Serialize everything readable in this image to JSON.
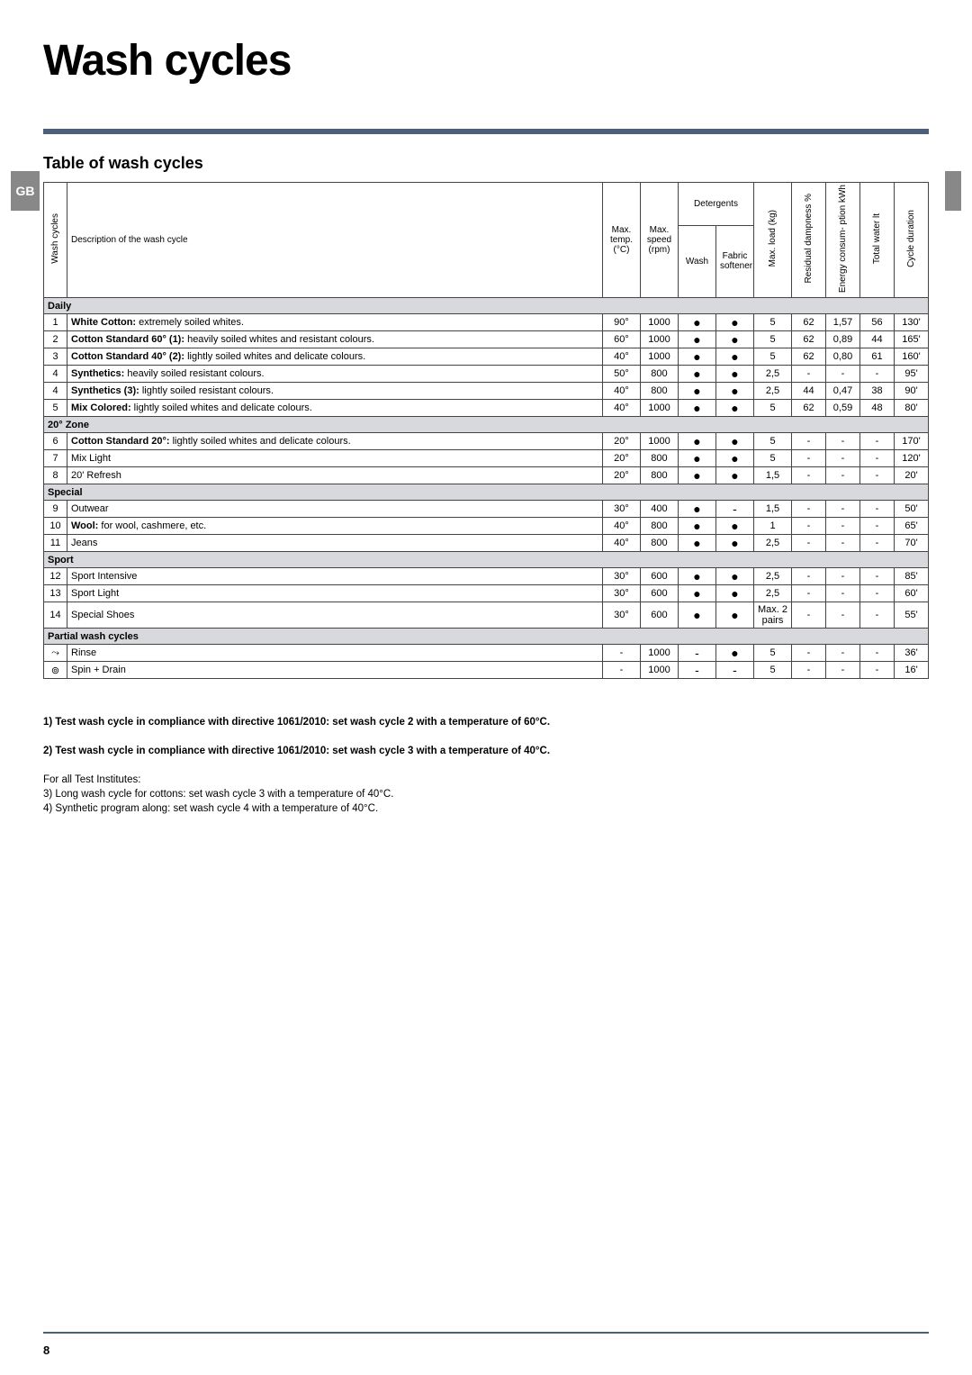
{
  "header": {
    "title": "Wash cycles",
    "side_tab": "GB",
    "section_title": "Table of wash cycles"
  },
  "columns": {
    "wc": "Wash cycles",
    "desc": "Description of the wash cycle",
    "temp_top": "Max.",
    "temp_bot": "temp. (°C)",
    "speed_top": "Max.",
    "speed_bot": "speed (rpm)",
    "det_group": "Detergents",
    "det_wash": "Wash",
    "det_soft": "Fabric softener",
    "load": "Max. load (kg)",
    "damp": "Residual dampness %",
    "energy": "Energy consum- ption kWh",
    "water": "Total water lt",
    "duration": "Cycle duration"
  },
  "sections": [
    {
      "type": "section",
      "label": "Daily"
    },
    {
      "type": "row",
      "num": "1",
      "desc_b": "White Cotton:",
      "desc_r": " extremely soiled whites.",
      "temp": "90°",
      "speed": "1000",
      "wash": "●",
      "soft": "●",
      "load": "5",
      "damp": "62",
      "energy": "1,57",
      "water": "56",
      "dur": "130'"
    },
    {
      "type": "row",
      "num": "2",
      "desc_b": "Cotton Standard 60° (1):",
      "desc_r": " heavily soiled whites and resistant colours.",
      "temp": "60°",
      "speed": "1000",
      "wash": "●",
      "soft": "●",
      "load": "5",
      "damp": "62",
      "energy": "0,89",
      "water": "44",
      "dur": "165'"
    },
    {
      "type": "row",
      "num": "3",
      "desc_b": "Cotton Standard 40° (2):",
      "desc_r": " lightly soiled whites and delicate colours.",
      "temp": "40°",
      "speed": "1000",
      "wash": "●",
      "soft": "●",
      "load": "5",
      "damp": "62",
      "energy": "0,80",
      "water": "61",
      "dur": "160'"
    },
    {
      "type": "row",
      "num": "4",
      "desc_b": "Synthetics:",
      "desc_r": " heavily soiled resistant colours.",
      "temp": "50°",
      "speed": "800",
      "wash": "●",
      "soft": "●",
      "load": "2,5",
      "damp": "-",
      "energy": "-",
      "water": "-",
      "dur": "95'"
    },
    {
      "type": "row",
      "num": "4",
      "desc_b": "Synthetics (3):",
      "desc_r": " lightly soiled resistant colours.",
      "temp": "40°",
      "speed": "800",
      "wash": "●",
      "soft": "●",
      "load": "2,5",
      "damp": "44",
      "energy": "0,47",
      "water": "38",
      "dur": "90'"
    },
    {
      "type": "row",
      "num": "5",
      "desc_b": "Mix Colored:",
      "desc_r": " lightly soiled whites and delicate colours.",
      "temp": "40°",
      "speed": "1000",
      "wash": "●",
      "soft": "●",
      "load": "5",
      "damp": "62",
      "energy": "0,59",
      "water": "48",
      "dur": "80'"
    },
    {
      "type": "section",
      "label": "20° Zone"
    },
    {
      "type": "row",
      "num": "6",
      "desc_b": "Cotton Standard 20°:",
      "desc_r": " lightly soiled whites and delicate colours.",
      "temp": "20°",
      "speed": "1000",
      "wash": "●",
      "soft": "●",
      "load": "5",
      "damp": "-",
      "energy": "-",
      "water": "-",
      "dur": "170'"
    },
    {
      "type": "row",
      "num": "7",
      "desc_b": "",
      "desc_r": "Mix Light",
      "temp": "20°",
      "speed": "800",
      "wash": "●",
      "soft": "●",
      "load": "5",
      "damp": "-",
      "energy": "-",
      "water": "-",
      "dur": "120'"
    },
    {
      "type": "row",
      "num": "8",
      "desc_b": "",
      "desc_r": "20' Refresh",
      "temp": "20°",
      "speed": "800",
      "wash": "●",
      "soft": "●",
      "load": "1,5",
      "damp": "-",
      "energy": "-",
      "water": "-",
      "dur": "20'"
    },
    {
      "type": "section",
      "label": "Special"
    },
    {
      "type": "row",
      "num": "9",
      "desc_b": "",
      "desc_r": "Outwear",
      "temp": "30°",
      "speed": "400",
      "wash": "●",
      "soft": "-",
      "load": "1,5",
      "damp": "-",
      "energy": "-",
      "water": "-",
      "dur": "50'"
    },
    {
      "type": "row",
      "num": "10",
      "desc_b": "Wool:",
      "desc_r": " for wool, cashmere, etc.",
      "temp": "40°",
      "speed": "800",
      "wash": "●",
      "soft": "●",
      "load": "1",
      "damp": "-",
      "energy": "-",
      "water": "-",
      "dur": "65'"
    },
    {
      "type": "row",
      "num": "11",
      "desc_b": "",
      "desc_r": "Jeans",
      "temp": "40°",
      "speed": "800",
      "wash": "●",
      "soft": "●",
      "load": "2,5",
      "damp": "-",
      "energy": "-",
      "water": "-",
      "dur": "70'"
    },
    {
      "type": "section",
      "label": "Sport"
    },
    {
      "type": "row",
      "num": "12",
      "desc_b": "",
      "desc_r": "Sport Intensive",
      "temp": "30°",
      "speed": "600",
      "wash": "●",
      "soft": "●",
      "load": "2,5",
      "damp": "-",
      "energy": "-",
      "water": "-",
      "dur": "85'"
    },
    {
      "type": "row",
      "num": "13",
      "desc_b": "",
      "desc_r": "Sport Light",
      "temp": "30°",
      "speed": "600",
      "wash": "●",
      "soft": "●",
      "load": "2,5",
      "damp": "-",
      "energy": "-",
      "water": "-",
      "dur": "60'"
    },
    {
      "type": "row",
      "num": "14",
      "desc_b": "",
      "desc_r": "Special Shoes",
      "temp": "30°",
      "speed": "600",
      "wash": "●",
      "soft": "●",
      "load": "Max. 2 pairs",
      "damp": "-",
      "energy": "-",
      "water": "-",
      "dur": "55'"
    },
    {
      "type": "section",
      "label": "Partial wash cycles"
    },
    {
      "type": "row",
      "num": "⤳",
      "desc_b": "",
      "desc_r": "Rinse",
      "temp": "-",
      "speed": "1000",
      "wash": "-",
      "soft": "●",
      "load": "5",
      "damp": "-",
      "energy": "-",
      "water": "-",
      "dur": "36'"
    },
    {
      "type": "row",
      "num": "⊚",
      "desc_b": "",
      "desc_r": "Spin + Drain",
      "temp": "-",
      "speed": "1000",
      "wash": "-",
      "soft": "-",
      "load": "5",
      "damp": "-",
      "energy": "-",
      "water": "-",
      "dur": "16'"
    }
  ],
  "notes": {
    "l1": "1) Test wash cycle in compliance with directive 1061/2010: set wash cycle 2 with a temperature of 60°C.",
    "l2": "2) Test wash cycle in compliance with directive 1061/2010: set wash cycle 3 with a temperature of 40°C.",
    "l3": "For all Test Institutes:",
    "l4": "3) Long wash cycle for cottons: set wash cycle 3 with a temperature of 40°C.",
    "l5": "4) Synthetic program along: set wash cycle 4 with a temperature of 40°C."
  },
  "footer": {
    "page": "8"
  },
  "style": {
    "rule_color": "#4b5f7a",
    "section_bg": "#d7d9dc",
    "tab_bg": "#888888"
  }
}
